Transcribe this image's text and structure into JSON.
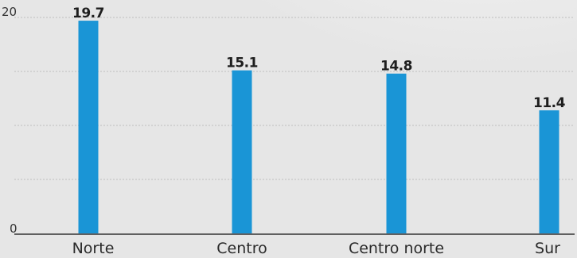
{
  "chart_data": {
    "type": "bar",
    "categories": [
      "Norte",
      "Centro",
      "Centro norte",
      "Sur"
    ],
    "values": [
      19.7,
      15.1,
      14.8,
      11.4
    ],
    "value_labels": [
      "19.7",
      "15.1",
      "14.8",
      "11.4"
    ],
    "ylim": [
      0,
      20
    ],
    "yticks": [
      "0",
      "20"
    ],
    "grid": true,
    "bar_color": "#1a95d6",
    "axis_color": "#333333",
    "grid_color": "#bdbdbd",
    "title": "",
    "xlabel": "",
    "ylabel": ""
  }
}
